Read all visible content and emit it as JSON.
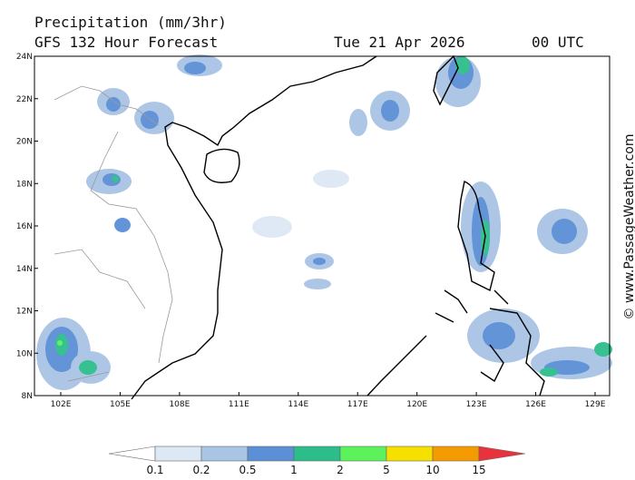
{
  "header": {
    "title": "Precipitation (mm/3hr)",
    "subtitle": "GFS 132 Hour Forecast",
    "date": "Tue 21 Apr 2026",
    "time": "00 UTC"
  },
  "map": {
    "lat_labels": [
      "24N",
      "22N",
      "20N",
      "18N",
      "16N",
      "14N",
      "12N",
      "10N",
      "8N"
    ],
    "lon_labels": [
      "102E",
      "105E",
      "108E",
      "111E",
      "114E",
      "117E",
      "120E",
      "123E",
      "126E",
      "129E"
    ]
  },
  "colorbar": {
    "labels": [
      "0.1",
      "0.2",
      "0.5",
      "1",
      "2",
      "5",
      "10",
      "15"
    ],
    "colors": [
      "#ffffff",
      "#dde8f5",
      "#a9c4e4",
      "#5b8fd6",
      "#2dbd8b",
      "#5cf25c",
      "#f5e000",
      "#f59a00",
      "#e8333c"
    ]
  },
  "credit": "© www.PassageWeather.com"
}
